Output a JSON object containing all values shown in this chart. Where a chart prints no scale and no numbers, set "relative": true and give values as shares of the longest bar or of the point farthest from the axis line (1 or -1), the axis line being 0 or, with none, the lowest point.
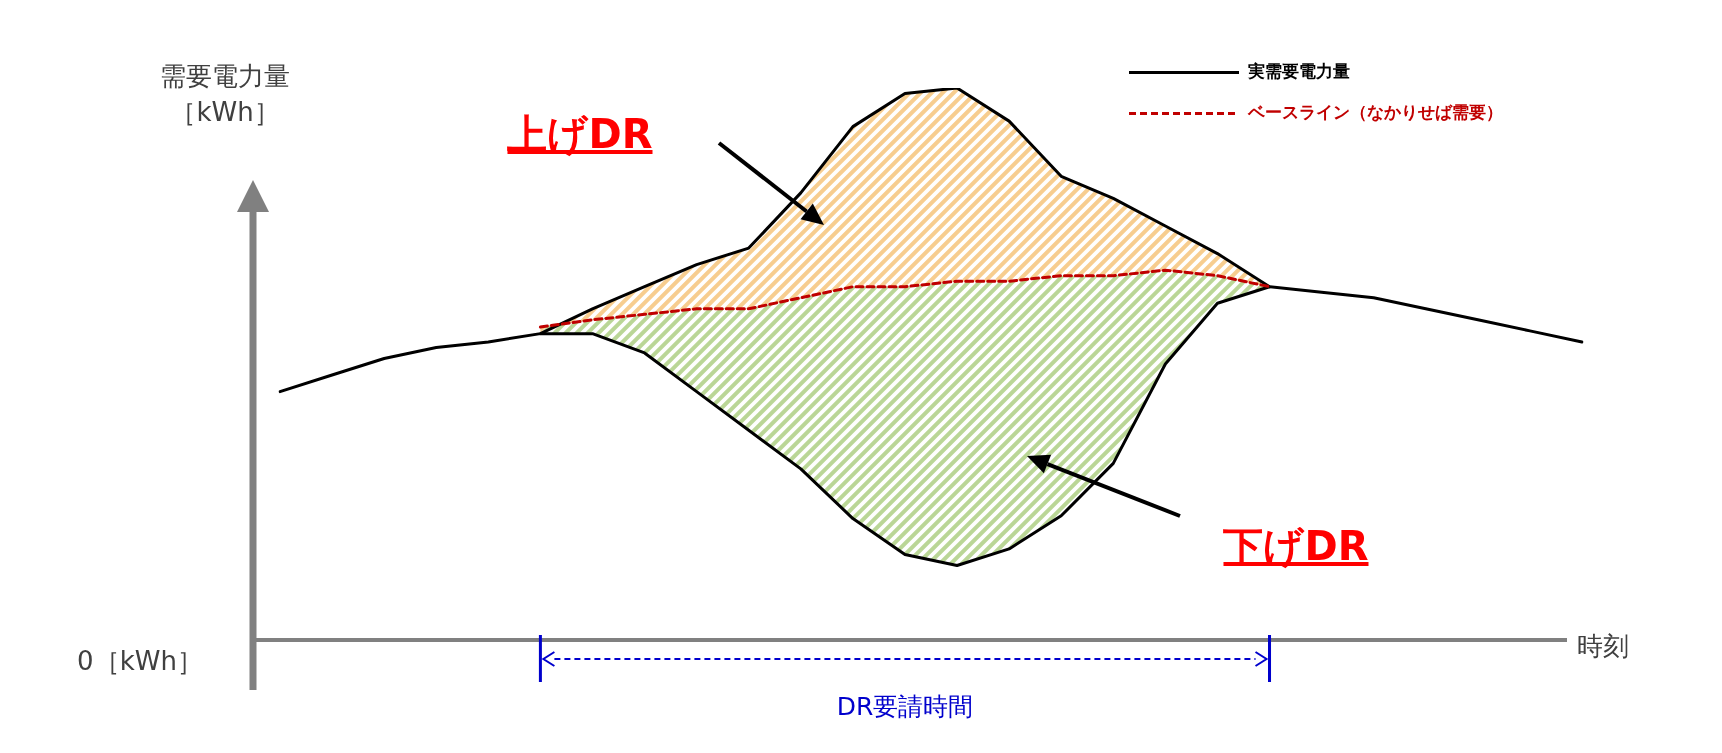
{
  "chart_data": {
    "type": "line",
    "relative": true,
    "legend": "top right",
    "marker": "none",
    "xlabel": "時刻",
    "ylabel": "需要電力量［kWh］",
    "categories": [
      null,
      null,
      null,
      null,
      null,
      null,
      null,
      null,
      null,
      null,
      null,
      null,
      null,
      null,
      null,
      null,
      null,
      null,
      null,
      null,
      null,
      null,
      null,
      null,
      null,
      null
    ],
    "series": [
      {
        "name": "実需要電力量",
        "color": "#000000",
        "line_style": "solid",
        "values": [
          0.45,
          0.48,
          0.51,
          0.53,
          0.54,
          0.555,
          0.6,
          0.64,
          0.68,
          0.71,
          0.81,
          0.93,
          0.99,
          1,
          0.94,
          0.84,
          0.8,
          0.75,
          0.7,
          0.64,
          0.63,
          0.62,
          0.6,
          0.58,
          0.56,
          0.54
        ]
      },
      {
        "color": "#000000",
        "line_style": "solid",
        "values": [
          null,
          null,
          null,
          null,
          null,
          0.555,
          0.555,
          0.52,
          0.45,
          0.38,
          0.31,
          0.22,
          0.155,
          0.135,
          0.165,
          0.225,
          0.32,
          0.5,
          0.61,
          0.64,
          null,
          null,
          null,
          null,
          null,
          null
        ]
      },
      {
        "name": "ベースライン（なかりせば需要）",
        "color": "#c00000",
        "line_style": "dashed",
        "values": [
          null,
          null,
          null,
          null,
          null,
          0.567,
          0.58,
          0.59,
          0.6,
          0.6,
          0.62,
          0.64,
          0.64,
          0.65,
          0.65,
          0.66,
          0.66,
          0.67,
          0.66,
          0.64,
          null,
          null,
          null,
          null,
          null,
          null
        ]
      }
    ],
    "annotations": [
      "上げDR",
      "下げDR",
      "DR要請時間",
      "0［kWh］"
    ]
  }
}
